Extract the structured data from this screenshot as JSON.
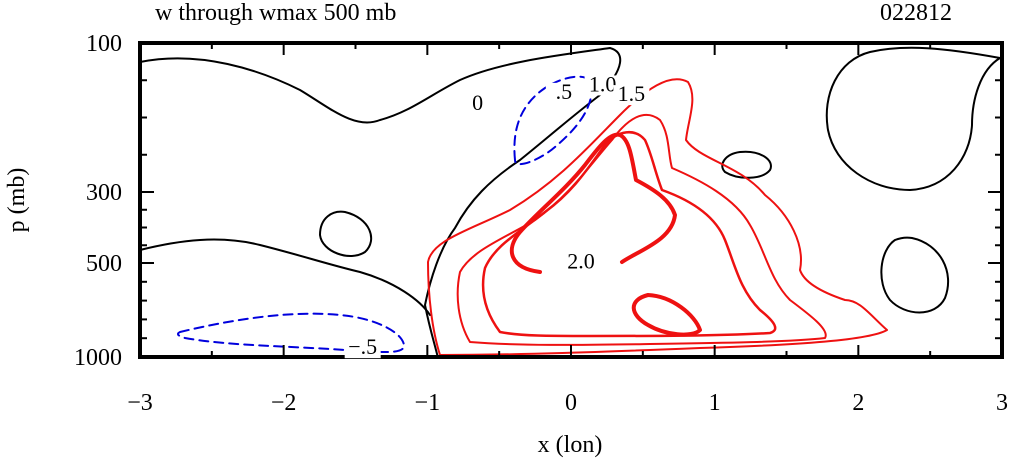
{
  "chart_data": {
    "type": "contour",
    "title": "w through wmax 500 mb",
    "case_id": "022812",
    "xlabel": "x (lon)",
    "ylabel": "p (mb)",
    "xlim": [
      -3,
      3
    ],
    "x_ticks": [
      -3,
      -2,
      -1,
      0,
      1,
      2,
      3
    ],
    "x_tick_labels": [
      "−3",
      "−2",
      "−1",
      "0",
      "1",
      "2",
      "3"
    ],
    "y_ticks": [
      100,
      300,
      500,
      1000
    ],
    "y_tick_labels": [
      "100",
      "300",
      "500",
      "1000"
    ],
    "ylim": [
      1000,
      100
    ],
    "colors": {
      "zero_contour": "#000000",
      "negative_contour": "#0000dd",
      "positive_contour": "#ee1111",
      "frame": "#000000"
    },
    "contour_labels": [
      {
        "text": "0",
        "x": -0.65,
        "p": 190
      },
      {
        "text": ".5",
        "x": -0.05,
        "p": 175
      },
      {
        "text": "1.0",
        "x": 0.22,
        "p": 165
      },
      {
        "text": "1.5",
        "x": 0.42,
        "p": 178
      },
      {
        "text": "2.0",
        "x": 0.07,
        "p": 530
      },
      {
        "text": "−.5",
        "x": -1.45,
        "p": 985
      }
    ]
  }
}
